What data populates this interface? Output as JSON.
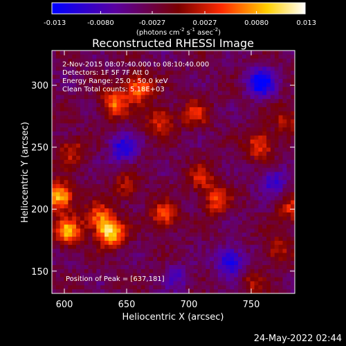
{
  "chart_data": {
    "type": "heatmap",
    "title": "Reconstructed RHESSI Image",
    "xlabel": "Heliocentric X (arcsec)",
    "ylabel": "Heliocentric Y (arcsec)",
    "xlim": [
      590,
      785
    ],
    "ylim": [
      132,
      328
    ],
    "x_ticks": [
      "600",
      "650",
      "700",
      "750"
    ],
    "x_tick_values": [
      600,
      650,
      700,
      750
    ],
    "y_ticks": [
      "150",
      "200",
      "250",
      "300"
    ],
    "y_tick_values": [
      150,
      200,
      250,
      300
    ],
    "colorbar": {
      "ticks": [
        "-0.013",
        "-0.0080",
        "-0.0027",
        "0.0027",
        "0.0080",
        "0.013"
      ],
      "tick_values": [
        -0.013,
        -0.008,
        -0.0027,
        0.0027,
        0.008,
        0.013
      ],
      "range": [
        -0.013,
        0.013
      ],
      "unit_parts": [
        "(photons cm",
        "-2",
        " s",
        "-1",
        " asec",
        "-2",
        ")"
      ],
      "colors": [
        "#0000ff",
        "#5a00a0",
        "#7a0000",
        "#ff2a00",
        "#ffd000",
        "#ffffff"
      ]
    },
    "overlay": {
      "time_range": "2-Nov-2015 08:07:40.000 to 08:10:40.000",
      "detectors": "Detectors: 1F 5F 7F  Att 0",
      "energy_range": "Energy Range: 25.0 - 50.0 keV",
      "clean_info": "Clean      Total counts: 5.18E+03",
      "peak_position": "Position of Peak = [637,181]"
    },
    "peak": [
      637,
      181
    ],
    "bright_sources": [
      {
        "x": 596,
        "y": 210,
        "intensity": 0.013
      },
      {
        "x": 603,
        "y": 182,
        "intensity": 0.011
      },
      {
        "x": 637,
        "y": 181,
        "intensity": 0.013
      },
      {
        "x": 628,
        "y": 194,
        "intensity": 0.008
      },
      {
        "x": 640,
        "y": 285,
        "intensity": 0.009
      },
      {
        "x": 660,
        "y": 297,
        "intensity": 0.01
      },
      {
        "x": 606,
        "y": 247,
        "intensity": 0.006
      },
      {
        "x": 649,
        "y": 218,
        "intensity": 0.005
      },
      {
        "x": 680,
        "y": 195,
        "intensity": 0.008
      },
      {
        "x": 677,
        "y": 272,
        "intensity": 0.007
      },
      {
        "x": 705,
        "y": 277,
        "intensity": 0.006
      },
      {
        "x": 710,
        "y": 225,
        "intensity": 0.006
      },
      {
        "x": 722,
        "y": 207,
        "intensity": 0.007
      },
      {
        "x": 757,
        "y": 252,
        "intensity": 0.008
      },
      {
        "x": 778,
        "y": 273,
        "intensity": 0.005
      },
      {
        "x": 782,
        "y": 200,
        "intensity": 0.006
      },
      {
        "x": 771,
        "y": 167,
        "intensity": 0.005
      },
      {
        "x": 752,
        "y": 140,
        "intensity": 0.004
      }
    ],
    "dark_regions": [
      {
        "x": 758,
        "y": 302,
        "intensity": -0.011
      },
      {
        "x": 647,
        "y": 248,
        "intensity": -0.008
      },
      {
        "x": 733,
        "y": 158,
        "intensity": -0.009
      },
      {
        "x": 768,
        "y": 222,
        "intensity": -0.006
      },
      {
        "x": 691,
        "y": 145,
        "intensity": -0.004
      }
    ]
  },
  "footer": {
    "timestamp": "24-May-2022 02:44"
  }
}
